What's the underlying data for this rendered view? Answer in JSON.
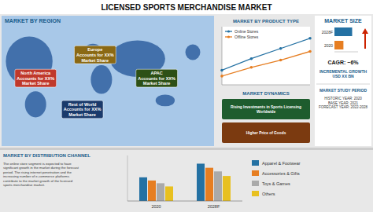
{
  "chart_data": [
    {
      "type": "header",
      "title": "LICENSED SPORTS MERCHANDISE MARKET"
    },
    {
      "type": "map",
      "title": "MARKET BY REGION",
      "annotations": [
        "North America\nAccounts for XX%\nMarket Share",
        "Europe\nAccounts for XX%\nMarket Share",
        "APAC\nAccounts for XX%\nMarket Share",
        "Rest of World\nAccounts for XX%\nMarket Share"
      ],
      "colors": [
        "#c0392b",
        "#8B6914",
        "#2d5016",
        "#1a3a6b"
      ]
    },
    {
      "type": "line",
      "title": "MARKET BY PRODUCT TYPE",
      "x": [
        0,
        1,
        2,
        3
      ],
      "xlim": [
        0,
        3
      ],
      "ylim": [
        0.5,
        2.5
      ],
      "tick_labels": false,
      "legend": "upper left",
      "series": [
        {
          "name": "Online Stores",
          "color": "#2471a3",
          "marker": "circle",
          "values": [
            1.0,
            1.4,
            1.75,
            2.1
          ]
        },
        {
          "name": "Offline Stores",
          "color": "#e67e22",
          "marker": "circle",
          "values": [
            0.8,
            1.1,
            1.35,
            1.65
          ]
        }
      ]
    },
    {
      "type": "text",
      "title": "MARKET DYNAMICS",
      "annotations": [
        "Rising Investments in Sports Licensing\nWorldwide",
        "Higher Price of Goods"
      ],
      "colors": [
        "#1e5c2e",
        "#7B3A10"
      ]
    },
    {
      "type": "bar",
      "orientation": "horizontal",
      "title": "MARKET SIZE",
      "categories": [
        "2028F",
        "2020"
      ],
      "values": [
        0.75,
        0.38
      ],
      "colors": [
        "#2471a3",
        "#e67e22"
      ],
      "xlim": [
        0,
        1
      ],
      "tick_labels": "y",
      "annotations": [
        "CAGR: ~6%",
        "INCREMENTAL GROWTH\nUSD XX BN",
        "MARKET STUDY PERIOD",
        "HISTORIC YEAR: 2020\nBASE YEAR: 2021\nFORECAST YEAR: 2022-2028"
      ]
    },
    {
      "type": "bar",
      "title": "MARKET BY DISTRIBUTION CHANNEL",
      "annotations": [
        "The online store segment is expected to have\nsignificant growth in the market during the forecast\nperiod. The rising internet penetration and the\nincreasing number of e-commerce platforms\ncontribute to the market growth of the licensed\nsports merchandise market."
      ],
      "categories": [
        "2020",
        "2028F"
      ],
      "ylim": [
        0,
        1
      ],
      "tick_labels": "x",
      "legend": "right",
      "series": [
        {
          "name": "Apparel & Footwear",
          "color": "#2471a3",
          "values": [
            0.52,
            0.82
          ]
        },
        {
          "name": "Accessories & Gifts",
          "color": "#e67e22",
          "values": [
            0.45,
            0.73
          ]
        },
        {
          "name": "Toys & Games",
          "color": "#aaaaaa",
          "values": [
            0.39,
            0.65
          ]
        },
        {
          "name": "Others",
          "color": "#e8c020",
          "values": [
            0.32,
            0.55
          ]
        }
      ]
    }
  ]
}
